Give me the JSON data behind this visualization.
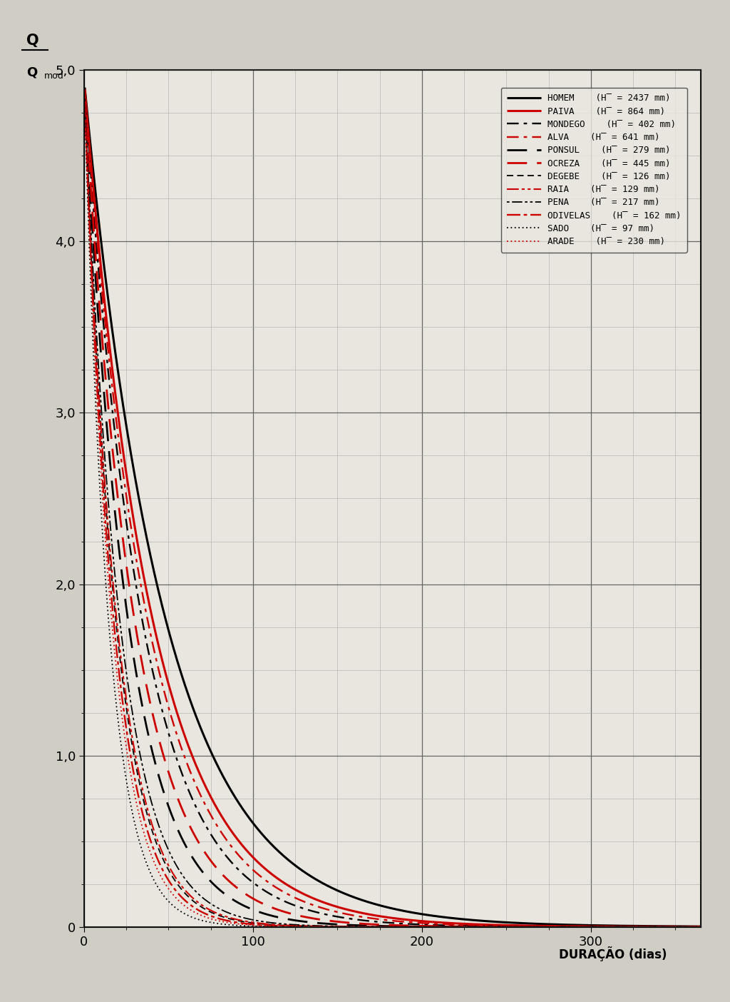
{
  "xlabel": "DURAÇÃO (dias)",
  "ylim": [
    0,
    5.0
  ],
  "xlim": [
    0,
    365
  ],
  "ytick_values": [
    0,
    1.0,
    2.0,
    3.0,
    4.0,
    5.0
  ],
  "ytick_labels": [
    "0",
    "1,0",
    "2,0",
    "3,0",
    "4,0",
    "5,0"
  ],
  "xtick_values": [
    0,
    100,
    200,
    300
  ],
  "background_color": "#d0cdc4",
  "plot_bg_color": "#e8e6de",
  "grid_major_color": "#666666",
  "grid_minor_color": "#aaaaaa",
  "curves": [
    {
      "name": "HOMEM",
      "label": "H̅ = 2437 mm",
      "color": "#000000",
      "lw": 2.2,
      "ls_key": "solid",
      "k": 0.021,
      "p": 1.0
    },
    {
      "name": "PAIVA",
      "label": "H̅ = 864 mm",
      "color": "#cc0000",
      "lw": 2.2,
      "ls_key": "solid",
      "k": 0.025,
      "p": 1.0
    },
    {
      "name": "MONDEGO",
      "label": "H̅ = 402 mm",
      "color": "#000000",
      "lw": 1.7,
      "ls_key": "dashdot",
      "k": 0.0295,
      "p": 1.0
    },
    {
      "name": "ALVA",
      "label": "H̅ = 641 mm",
      "color": "#cc0000",
      "lw": 1.7,
      "ls_key": "dashdot",
      "k": 0.027,
      "p": 1.0
    },
    {
      "name": "PONSUL",
      "label": "H̅ = 279 mm",
      "color": "#000000",
      "lw": 2.0,
      "ls_key": "longdash",
      "k": 0.039,
      "p": 1.0
    },
    {
      "name": "OCREZA",
      "label": "H̅ = 445 mm",
      "color": "#cc0000",
      "lw": 2.0,
      "ls_key": "longdash",
      "k": 0.034,
      "p": 1.0
    },
    {
      "name": "DEGEBE",
      "label": "H̅ = 126 mm",
      "color": "#000000",
      "lw": 1.3,
      "ls_key": "shortdash",
      "k": 0.054,
      "p": 1.0
    },
    {
      "name": "RAIA",
      "label": "H̅ = 129 mm",
      "color": "#cc0000",
      "lw": 1.5,
      "ls_key": "dashdotdot",
      "k": 0.0525,
      "p": 1.0
    },
    {
      "name": "PENA",
      "label": "H̅ = 217 mm",
      "color": "#000000",
      "lw": 1.3,
      "ls_key": "dotdashdot",
      "k": 0.048,
      "p": 1.0
    },
    {
      "name": "ODIVELAS",
      "label": "H̅ = 162 mm",
      "color": "#cc0000",
      "lw": 1.7,
      "ls_key": "dashdot2",
      "k": 0.058,
      "p": 1.0
    },
    {
      "name": "SADO",
      "label": "H̅ = 97 mm",
      "color": "#000000",
      "lw": 1.3,
      "ls_key": "dotted",
      "k": 0.07,
      "p": 1.0
    },
    {
      "name": "ARADE",
      "label": "H̅ = 230 mm",
      "color": "#cc0000",
      "lw": 1.3,
      "ls_key": "dotted",
      "k": 0.062,
      "p": 1.0
    }
  ]
}
